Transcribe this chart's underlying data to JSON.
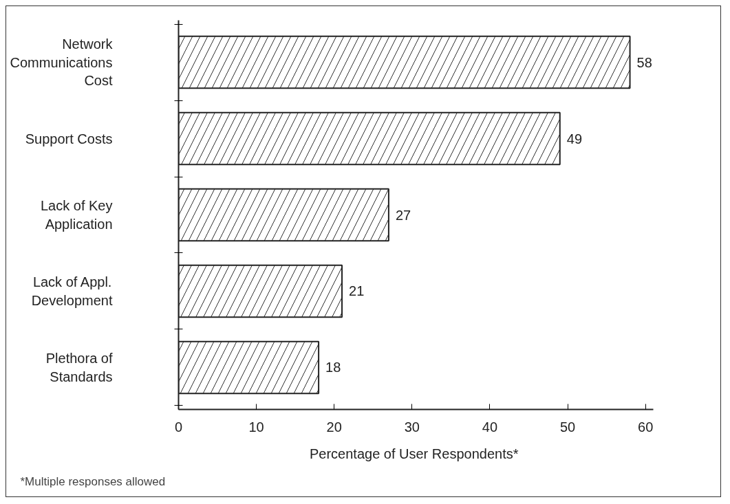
{
  "chart_data": {
    "type": "bar",
    "orientation": "horizontal",
    "categories": [
      "Network\nCommunications\nCost",
      "Support Costs",
      "Lack of Key\nApplication",
      "Lack of Appl.\nDevelopment",
      "Plethora of\nStandards"
    ],
    "values": [
      58,
      49,
      27,
      21,
      18
    ],
    "color": "#ffffff",
    "xlim": [
      0,
      61
    ],
    "xticks": [
      0,
      10,
      20,
      30,
      40,
      50,
      60
    ],
    "xlabel": "Percentage of  User Respondents*",
    "annotations": [
      "*Multiple responses allowed"
    ],
    "data_labels": true,
    "grid": false
  }
}
